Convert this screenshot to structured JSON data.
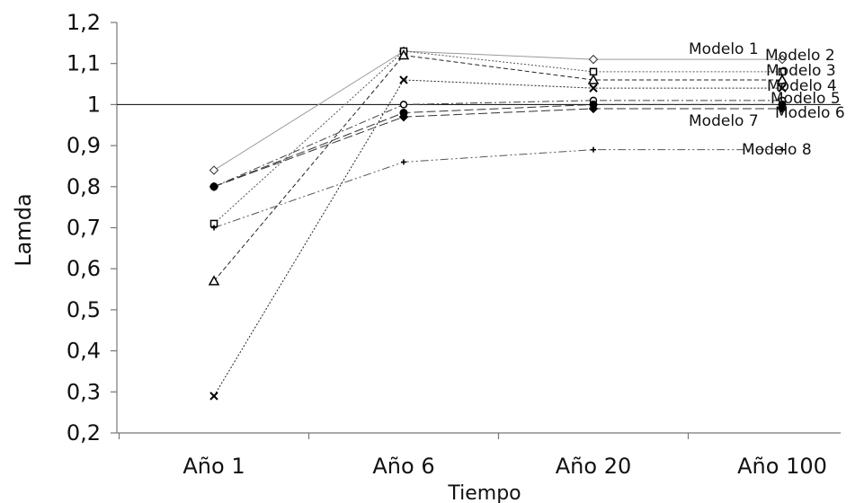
{
  "chart_data": {
    "type": "line",
    "title": "",
    "xlabel": "Tiempo",
    "ylabel": "Lamda",
    "categories": [
      "Año 1",
      "Año 6",
      "Año 20",
      "Año 100"
    ],
    "ylim": [
      0.2,
      1.2
    ],
    "yticks": [
      "0,2",
      "0,3",
      "0,4",
      "0,5",
      "0,6",
      "0,7",
      "0,8",
      "0,9",
      "1",
      "1,1",
      "1,2"
    ],
    "reference_line": 1,
    "grid": false,
    "series": [
      {
        "name": "Modelo 1",
        "marker": "diamond-open",
        "dash": "solid",
        "color": "#9a9a9a",
        "values": [
          0.84,
          1.13,
          1.11,
          1.11
        ]
      },
      {
        "name": "Modelo 2",
        "marker": "square-open",
        "dash": "dot",
        "color": "#555555",
        "values": [
          0.71,
          1.13,
          1.08,
          1.08
        ]
      },
      {
        "name": "Modelo 3",
        "marker": "triangle-open",
        "dash": "dash",
        "color": "#222222",
        "values": [
          0.57,
          1.12,
          1.06,
          1.06
        ]
      },
      {
        "name": "Modelo 4",
        "marker": "x",
        "dash": "dot",
        "color": "#222222",
        "values": [
          0.29,
          1.06,
          1.04,
          1.04
        ]
      },
      {
        "name": "Modelo 5",
        "marker": "circle-open",
        "dash": "dashdot",
        "color": "#444444",
        "values": [
          0.8,
          1.0,
          1.01,
          1.01
        ]
      },
      {
        "name": "Modelo 6",
        "marker": "circle-filled",
        "dash": "longdash",
        "color": "#333333",
        "values": [
          0.8,
          0.98,
          1.0,
          1.0
        ]
      },
      {
        "name": "Modelo 7",
        "marker": "diamond-filled",
        "dash": "longdash",
        "color": "#333333",
        "values": [
          0.8,
          0.97,
          0.99,
          0.99
        ]
      },
      {
        "name": "Modelo 8",
        "marker": "plus",
        "dash": "dashdotdot",
        "color": "#555555",
        "values": [
          0.7,
          0.86,
          0.89,
          0.89
        ]
      }
    ]
  }
}
